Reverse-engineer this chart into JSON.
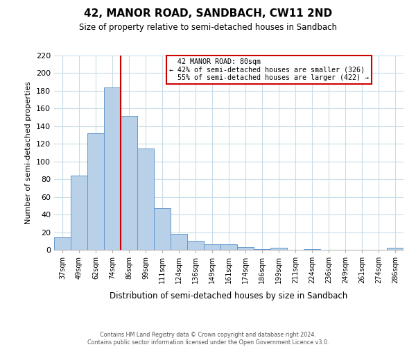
{
  "title": "42, MANOR ROAD, SANDBACH, CW11 2ND",
  "subtitle": "Size of property relative to semi-detached houses in Sandbach",
  "xlabel": "Distribution of semi-detached houses by size in Sandbach",
  "ylabel": "Number of semi-detached properties",
  "footer_line1": "Contains HM Land Registry data © Crown copyright and database right 2024.",
  "footer_line2": "Contains public sector information licensed under the Open Government Licence v3.0.",
  "bar_labels": [
    "37sqm",
    "49sqm",
    "62sqm",
    "74sqm",
    "86sqm",
    "99sqm",
    "111sqm",
    "124sqm",
    "136sqm",
    "149sqm",
    "161sqm",
    "174sqm",
    "186sqm",
    "199sqm",
    "211sqm",
    "224sqm",
    "236sqm",
    "249sqm",
    "261sqm",
    "274sqm",
    "286sqm"
  ],
  "bar_values": [
    14,
    84,
    132,
    184,
    152,
    115,
    47,
    18,
    10,
    6,
    6,
    3,
    1,
    2,
    0,
    1,
    0,
    0,
    0,
    0,
    2
  ],
  "bar_color": "#b8d0e8",
  "bar_edge_color": "#6699cc",
  "ylim": [
    0,
    220
  ],
  "yticks": [
    0,
    20,
    40,
    60,
    80,
    100,
    120,
    140,
    160,
    180,
    200,
    220
  ],
  "property_label": "42 MANOR ROAD: 80sqm",
  "vline_x_index": 3.5,
  "pct_smaller": 42,
  "count_smaller": 326,
  "pct_larger": 55,
  "count_larger": 422,
  "annotation_box_edge_color": "#cc0000",
  "vline_color": "#cc0000",
  "background_color": "#ffffff",
  "grid_color": "#c8dcea"
}
